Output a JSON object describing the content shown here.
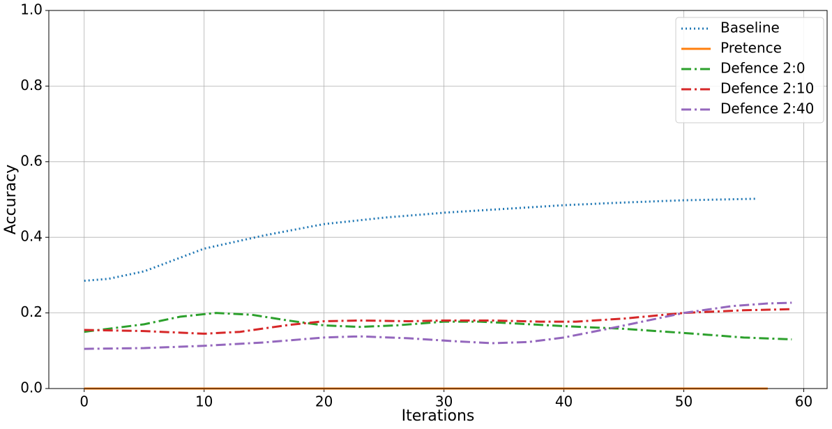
{
  "chart_data": {
    "type": "line",
    "x_label": "Iterations",
    "y_label": "Accuracy",
    "xlim": [
      -2.95,
      61.95
    ],
    "xticks": [
      0,
      10,
      20,
      30,
      40,
      50,
      60
    ],
    "ylim": [
      0,
      1
    ],
    "yticks": [
      {
        "value": 0,
        "label": "0.0"
      },
      0.2,
      0.4,
      0.6,
      0.8,
      {
        "value": 1,
        "label": "1.0"
      }
    ],
    "grid": true,
    "legend": "upper right",
    "series": [
      {
        "name": "Baseline",
        "color": "#1f77b4",
        "style": "dotted",
        "x": [
          0,
          2,
          5,
          10,
          15,
          20,
          25,
          30,
          35,
          40,
          45,
          50,
          56
        ],
        "values": [
          0.285,
          0.29,
          0.31,
          0.37,
          0.405,
          0.435,
          0.452,
          0.465,
          0.475,
          0.485,
          0.492,
          0.498,
          0.502
        ]
      },
      {
        "name": "Pretence",
        "color": "#ff7f0e",
        "style": "solid",
        "x": [
          0,
          57
        ],
        "values": [
          0,
          0
        ]
      },
      {
        "name": "Defence 2:0",
        "color": "#2ca02c",
        "style": "dashdot",
        "x": [
          0,
          5,
          8,
          11,
          14,
          17,
          20,
          23,
          26,
          30,
          33,
          36,
          40,
          45,
          50,
          55,
          59
        ],
        "values": [
          0.15,
          0.17,
          0.19,
          0.2,
          0.195,
          0.18,
          0.167,
          0.163,
          0.167,
          0.177,
          0.177,
          0.172,
          0.165,
          0.158,
          0.147,
          0.135,
          0.13
        ]
      },
      {
        "name": "Defence 2:10",
        "color": "#d62728",
        "style": "dashdot",
        "x": [
          0,
          5,
          10,
          13,
          17,
          20,
          23,
          27,
          30,
          34,
          38,
          41,
          45,
          50,
          55,
          59
        ],
        "values": [
          0.155,
          0.152,
          0.145,
          0.15,
          0.168,
          0.178,
          0.18,
          0.178,
          0.18,
          0.18,
          0.177,
          0.177,
          0.185,
          0.2,
          0.207,
          0.21
        ]
      },
      {
        "name": "Defence 2:40",
        "color": "#9467bd",
        "style": "dashdot",
        "x": [
          0,
          5,
          10,
          15,
          20,
          23,
          27,
          31,
          34,
          37,
          40,
          44,
          47,
          50,
          54,
          57,
          59
        ],
        "values": [
          0.105,
          0.107,
          0.113,
          0.122,
          0.135,
          0.138,
          0.133,
          0.125,
          0.12,
          0.123,
          0.135,
          0.16,
          0.18,
          0.2,
          0.218,
          0.225,
          0.227
        ]
      }
    ]
  }
}
